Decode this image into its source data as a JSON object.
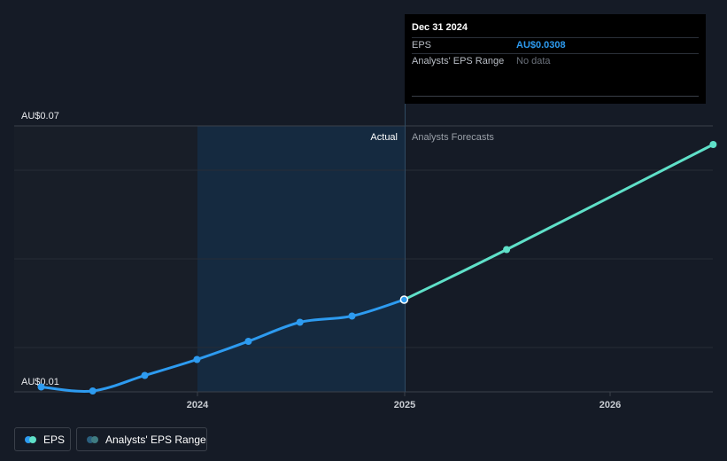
{
  "chart_data": {
    "type": "line",
    "y_axis": {
      "min_label": "AU$0.01",
      "max_label": "AU$0.07",
      "ylim": [
        0.01,
        0.07
      ]
    },
    "x_ticks": [
      "2024",
      "2025",
      "2026"
    ],
    "region_labels": {
      "actual": "Actual",
      "forecast": "Analysts Forecasts"
    },
    "series": [
      {
        "name": "EPS",
        "segment": "actual",
        "points": [
          {
            "x": "2023-03-31",
            "y": 0.0111
          },
          {
            "x": "2023-06-30",
            "y": 0.0102
          },
          {
            "x": "2023-09-30",
            "y": 0.0137
          },
          {
            "x": "2023-12-31",
            "y": 0.0173
          },
          {
            "x": "2024-03-31",
            "y": 0.0214
          },
          {
            "x": "2024-06-30",
            "y": 0.0257
          },
          {
            "x": "2024-09-30",
            "y": 0.0271
          },
          {
            "x": "2024-12-31",
            "y": 0.0308
          }
        ]
      },
      {
        "name": "EPS",
        "segment": "forecast",
        "points": [
          {
            "x": "2024-12-31",
            "y": 0.0308
          },
          {
            "x": "2025-06-30",
            "y": 0.0421
          },
          {
            "x": "2026-06-30",
            "y": 0.0658
          }
        ]
      }
    ],
    "grid": true,
    "colors": {
      "actual_line": "#2d9bf0",
      "forecast_line": "#5fe0c8",
      "background": "#151b26",
      "highlight_band": "#16293d"
    }
  },
  "tooltip": {
    "date": "Dec 31 2024",
    "rows": [
      {
        "label": "EPS",
        "value": "AU$0.0308"
      },
      {
        "label": "Analysts' EPS Range",
        "value": "No data"
      }
    ]
  },
  "legend": {
    "items": [
      {
        "label": "EPS",
        "colors": [
          "#2d9bf0",
          "#5fe0c8"
        ]
      },
      {
        "label": "Analysts' EPS Range",
        "colors": [
          "#2a5f7e",
          "#3f7c82"
        ]
      }
    ]
  }
}
